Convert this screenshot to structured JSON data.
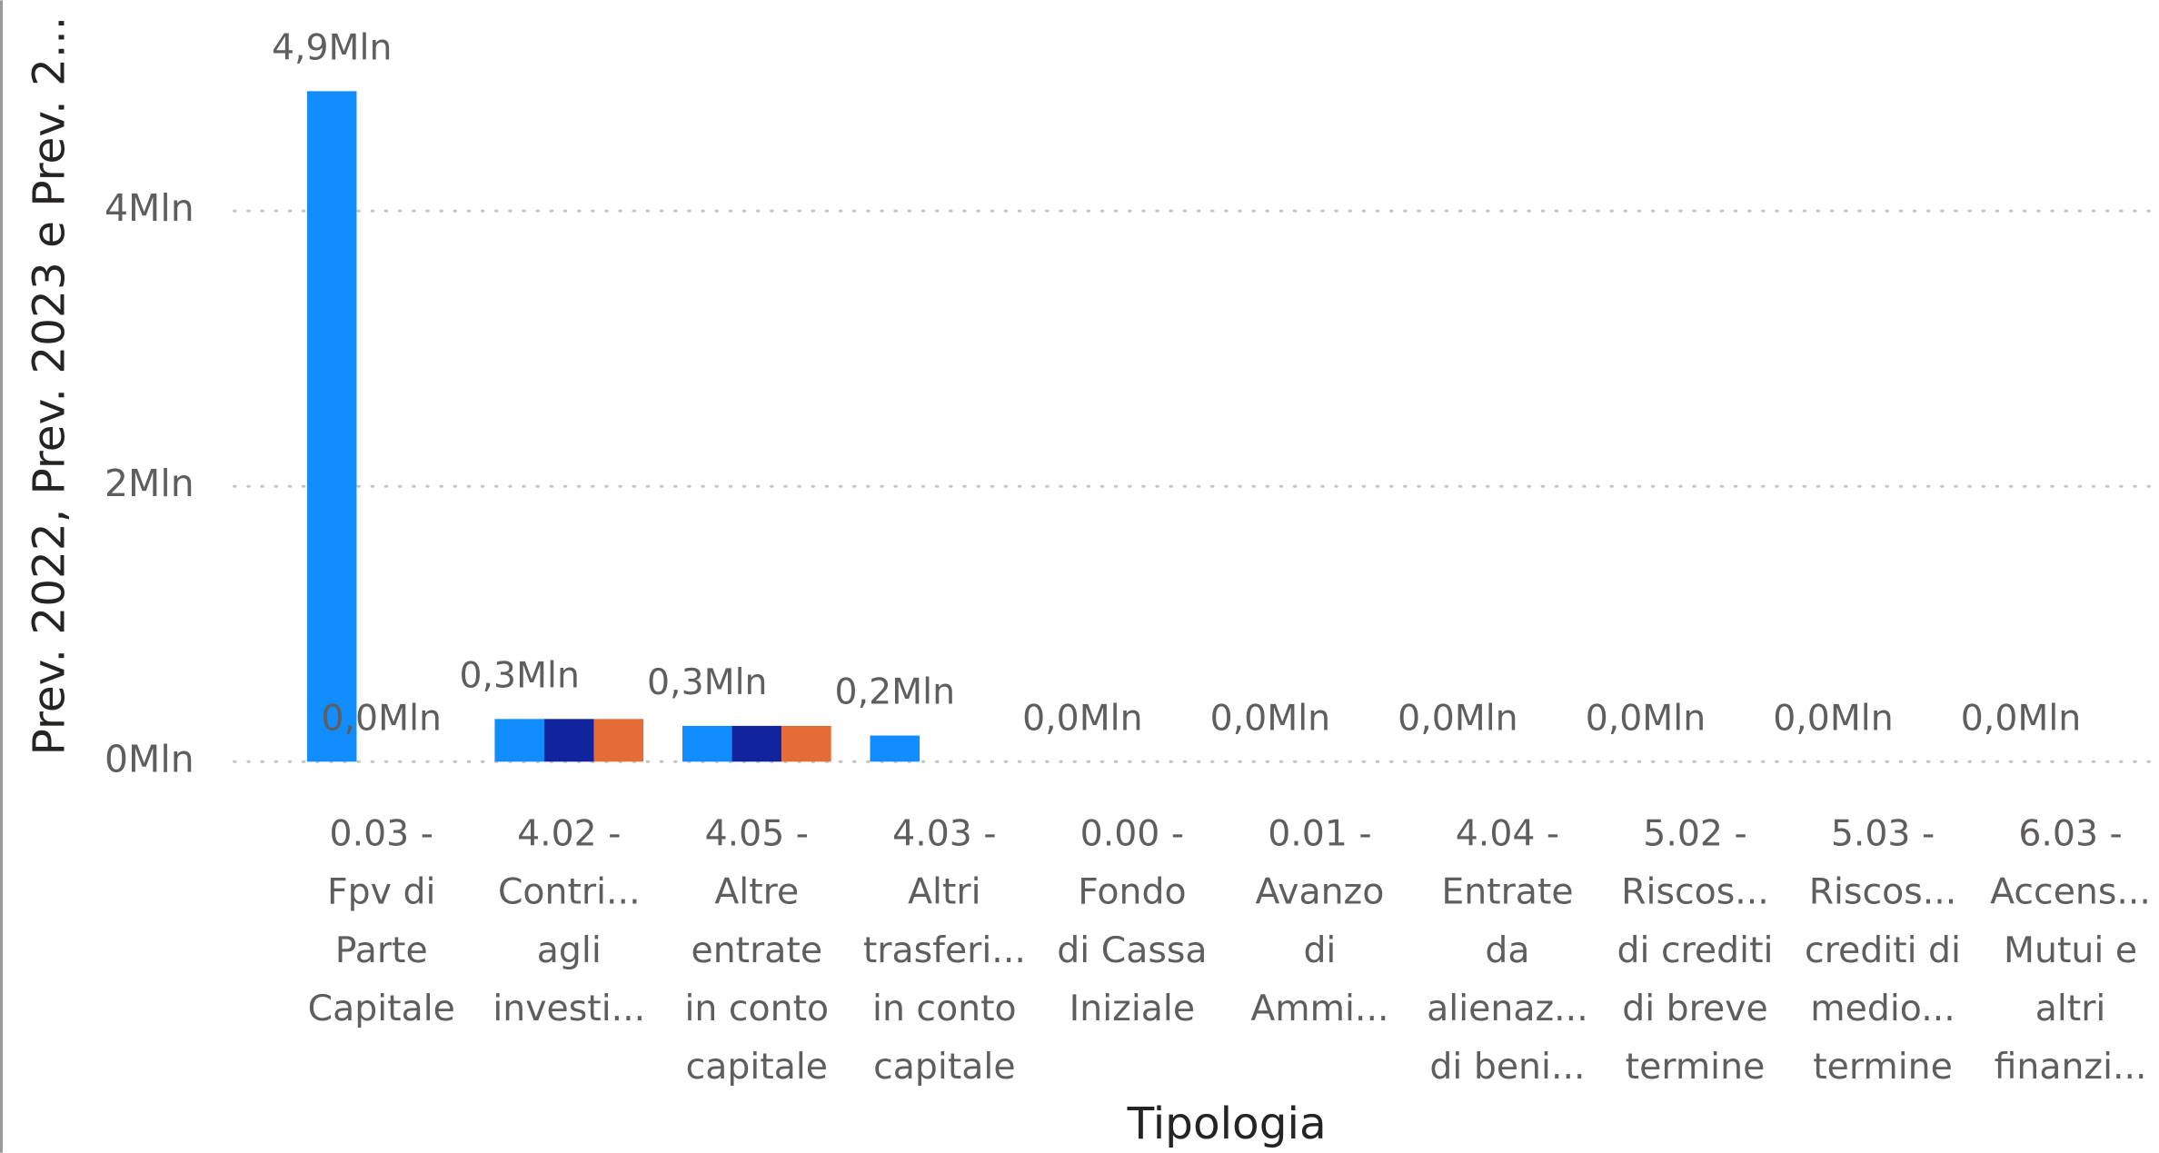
{
  "chart_data": {
    "type": "bar",
    "y_label": "Prev. 2022, Prev. 2023 e Prev. 2...",
    "x_label": "Tipologia",
    "categories": [
      [
        "0.03 -",
        "Fpv di",
        "Parte",
        "Capitale"
      ],
      [
        "4.02 -",
        "Contri...",
        "agli",
        "investi..."
      ],
      [
        "4.05 -",
        "Altre",
        "entrate",
        "in conto",
        "capitale"
      ],
      [
        "4.03 -",
        "Altri",
        "trasferi...",
        "in conto",
        "capitale"
      ],
      [
        "0.00 -",
        "Fondo",
        "di Cassa",
        "Iniziale"
      ],
      [
        "0.01 -",
        "Avanzo",
        "di",
        "Ammi..."
      ],
      [
        "4.04 -",
        "Entrate",
        "da",
        "alienaz...",
        "di beni..."
      ],
      [
        "5.02 -",
        "Riscos...",
        "di crediti",
        "di breve",
        "termine"
      ],
      [
        "5.03 -",
        "Riscos...",
        "crediti di",
        "medio...",
        "termine"
      ],
      [
        "6.03 -",
        "Accens...",
        "Mutui e",
        "altri",
        "finanzi..."
      ]
    ],
    "series": [
      {
        "color": "#118DFF",
        "values": [
          4.87,
          0.31,
          0.26,
          0.19,
          0,
          0,
          0,
          0,
          0,
          0
        ],
        "value_labels": [
          "4,9Mln",
          "0,3Mln",
          "0,3Mln",
          "0,2Mln",
          "0,0Mln",
          "0,0Mln",
          "0,0Mln",
          "0,0Mln",
          "0,0Mln",
          "0,0Mln"
        ]
      },
      {
        "color": "#12239E",
        "values": [
          0,
          0.31,
          0.26,
          0,
          0,
          0,
          0,
          0,
          0,
          0
        ],
        "value_labels": [
          "0,0Mln",
          null,
          null,
          null,
          null,
          null,
          null,
          null,
          null,
          null
        ]
      },
      {
        "color": "#E66C37",
        "values": [
          0,
          0.31,
          0.26,
          0,
          0,
          0,
          0,
          0,
          0,
          0
        ]
      }
    ],
    "ylim": [
      0,
      5.2
    ],
    "yticks": [
      {
        "value": 0,
        "label": "0Mln"
      },
      {
        "value": 2,
        "label": "2Mln"
      },
      {
        "value": 4,
        "label": "4Mln"
      }
    ],
    "grid": true
  }
}
